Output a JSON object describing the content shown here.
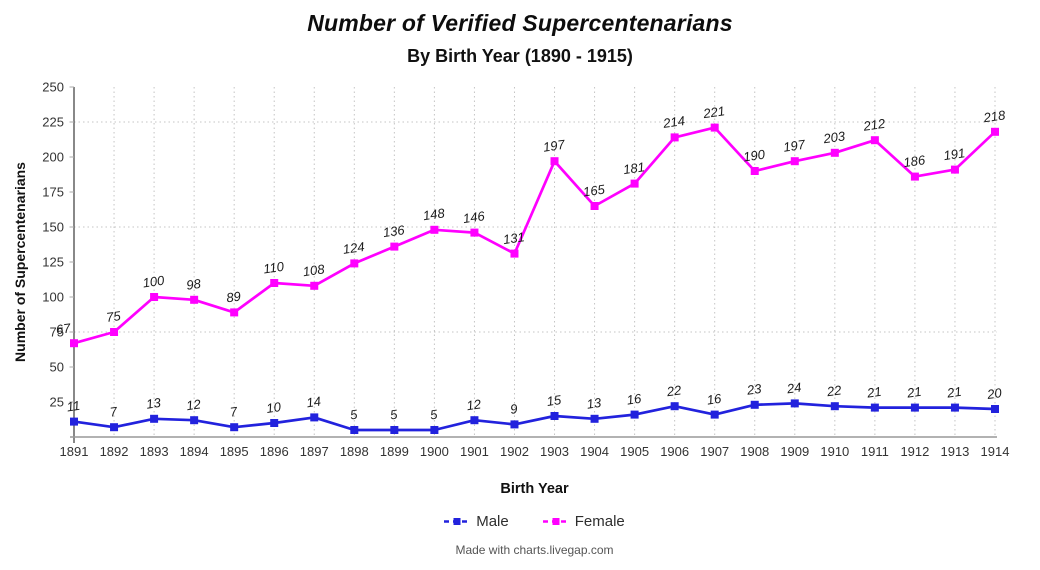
{
  "header": {
    "title": "Number of Verified Supercentenarians",
    "subtitle": "By Birth Year (1890 - 1915)"
  },
  "chart_data": {
    "type": "line",
    "title": "Number of Verified Supercentenarians",
    "subtitle": "By Birth Year (1890 - 1915)",
    "xlabel": "Birth Year",
    "ylabel": "Number of Supercentenarians",
    "ylim": [
      0,
      250
    ],
    "ytick_step": 25,
    "grid": {
      "vertical": true,
      "horizontal_values": [
        75,
        150,
        225
      ]
    },
    "legend_position": "bottom",
    "categories": [
      "1891",
      "1892",
      "1893",
      "1894",
      "1895",
      "1896",
      "1897",
      "1898",
      "1899",
      "1900",
      "1901",
      "1902",
      "1903",
      "1904",
      "1905",
      "1906",
      "1907",
      "1908",
      "1909",
      "1910",
      "1911",
      "1912",
      "1913",
      "1914"
    ],
    "series": [
      {
        "name": "Male",
        "color": "#2222DD",
        "marker": "square",
        "values": [
          11,
          7,
          13,
          12,
          7,
          10,
          14,
          5,
          5,
          5,
          12,
          9,
          15,
          13,
          16,
          22,
          16,
          23,
          24,
          22,
          21,
          21,
          21,
          20
        ]
      },
      {
        "name": "Female",
        "color": "#FF00FF",
        "marker": "square",
        "values": [
          67,
          75,
          100,
          98,
          89,
          110,
          108,
          124,
          136,
          148,
          146,
          131,
          197,
          165,
          181,
          214,
          221,
          190,
          197,
          203,
          212,
          186,
          191,
          218
        ]
      }
    ]
  },
  "colors": {
    "grid": "#c4c4c4",
    "y_axis": "#555555",
    "x_axis": "#999999",
    "tick_label": "#333333",
    "data_label": "#1c1c1c"
  },
  "footer": {
    "credit": "Made with charts.livegap.com"
  }
}
